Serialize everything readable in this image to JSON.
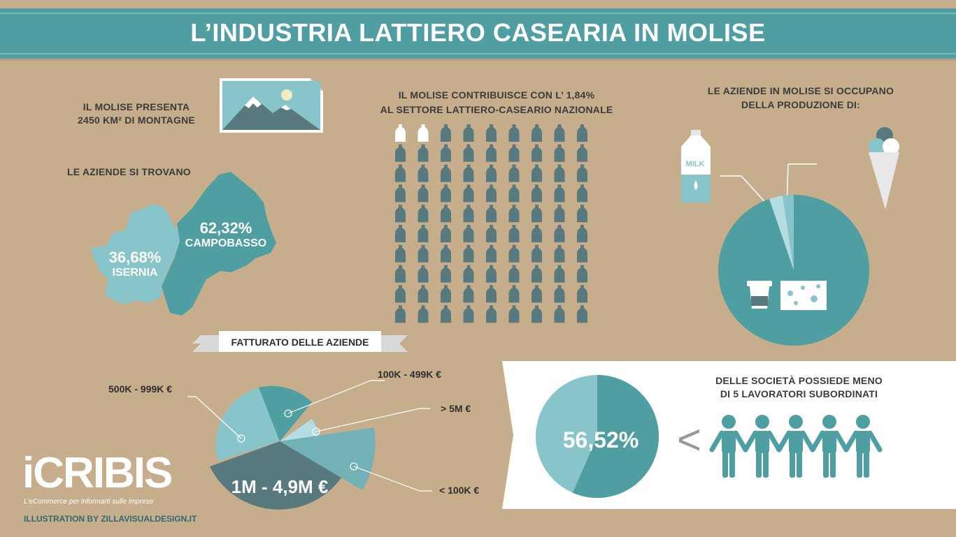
{
  "header": {
    "title": "L’INDUSTRIA LATTIERO CASEARIA IN MOLISE"
  },
  "mountains": {
    "line1": "IL MOLISE PRESENTA",
    "line2": "2450 KM² DI MONTAGNE"
  },
  "location": {
    "title": "LE AZIENDE SI TROVANO",
    "campobasso_pct": "62,32%",
    "campobasso_name": "CAMPOBASSO",
    "isernia_pct": "36,68%",
    "isernia_name": "ISERNIA"
  },
  "contribution": {
    "line1": "IL MOLISE CONTRIBUISCE CON L’ 1,84%",
    "line2": "AL SETTORE LATTIERO-CASEARIO NAZIONALE",
    "highlighted_bottles": 2,
    "total_bottles": 90
  },
  "production": {
    "line1": "LE AZIENDE IN MOLISE SI OCCUPANO",
    "line2": "DELLA PRODUZIONE DI:",
    "milk_label": "MILK"
  },
  "revenue": {
    "title": "FATTURATO DELLE AZIENDE",
    "label_1m": "1M - 4,9M €",
    "label_500k": "500K - 999K €",
    "label_100k": "100K - 499K €",
    "label_5m": "> 5M €",
    "label_lt100k": "< 100K €"
  },
  "employees": {
    "line1": "DELLE SOCIETÀ POSSIEDE MENO",
    "line2": "DI 5 LAVORATORI SUBORDINATI",
    "pct": "56,52%",
    "pct_value": 56.52,
    "less_than": "<"
  },
  "branding": {
    "logo": "iCRIBIS",
    "tagline": "L'eCommerce per informarti sulle imprese",
    "credit": "ILLUSTRATION BY ZILLAVISUALDESIGN.IT"
  },
  "colors": {
    "background": "#c6ae8c",
    "teal": "#4f9ea1",
    "teal_light": "#87c5cb",
    "slate": "#587a7e",
    "dark": "#2e2e2e"
  }
}
